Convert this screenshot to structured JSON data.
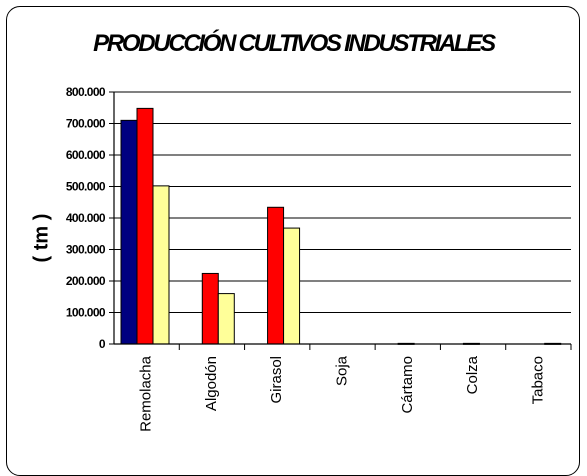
{
  "chart_data": {
    "type": "bar",
    "title": "PRODUCCIÓN CULTIVOS INDUSTRIALES",
    "ylabel": "( tm )",
    "xlabel": "",
    "categories": [
      "Remolacha",
      "Algodón",
      "Girasol",
      "Soja",
      "Cártamo",
      "Colza",
      "Tabaco"
    ],
    "series": [
      {
        "color": "#000080",
        "values": [
          710000,
          0,
          0,
          0,
          0,
          0,
          0
        ]
      },
      {
        "color": "#ff0000",
        "values": [
          748000,
          224000,
          434000,
          0,
          2000,
          2000,
          0
        ]
      },
      {
        "color": "#ffff99",
        "values": [
          502000,
          160000,
          368000,
          0,
          0,
          0,
          2000
        ]
      }
    ],
    "ylim": [
      0,
      800000
    ],
    "yticks": [
      "0",
      "100.000",
      "200.000",
      "300.000",
      "400.000",
      "500.000",
      "600.000",
      "700.000",
      "800.000"
    ],
    "grid": true,
    "legend": "none"
  }
}
